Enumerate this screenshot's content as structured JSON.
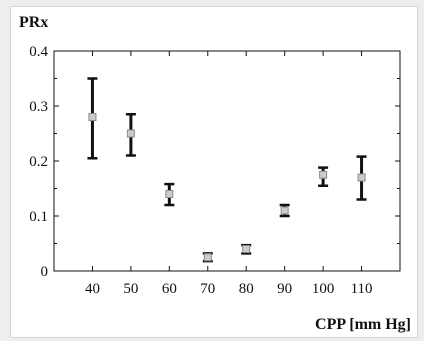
{
  "chart_data": {
    "type": "scatter",
    "title": "",
    "xlabel": "CPP [mm Hg]",
    "ylabel": "PRx",
    "x": [
      40,
      50,
      60,
      70,
      80,
      90,
      100,
      110
    ],
    "xticks": [
      "40",
      "50",
      "60",
      "70",
      "80",
      "90",
      "100",
      "110"
    ],
    "xlim": [
      30,
      120
    ],
    "ylim": [
      0,
      0.4
    ],
    "yticks": [
      "0",
      "0.1",
      "0.2",
      "0.3",
      "0.4"
    ],
    "grid": false,
    "legend": "none",
    "series": [
      {
        "mean": [
          0.28,
          0.25,
          0.14,
          0.025,
          0.04,
          0.11,
          0.175,
          0.17
        ],
        "lower": [
          0.205,
          0.21,
          0.12,
          0.018,
          0.032,
          0.1,
          0.155,
          0.13
        ],
        "upper": [
          0.35,
          0.285,
          0.158,
          0.032,
          0.047,
          0.12,
          0.188,
          0.208
        ]
      }
    ],
    "colors": {
      "errorbar": "#111111",
      "marker_fill": "#cccccc",
      "marker_stroke": "#8a8a8a",
      "axis": "#111111"
    }
  }
}
